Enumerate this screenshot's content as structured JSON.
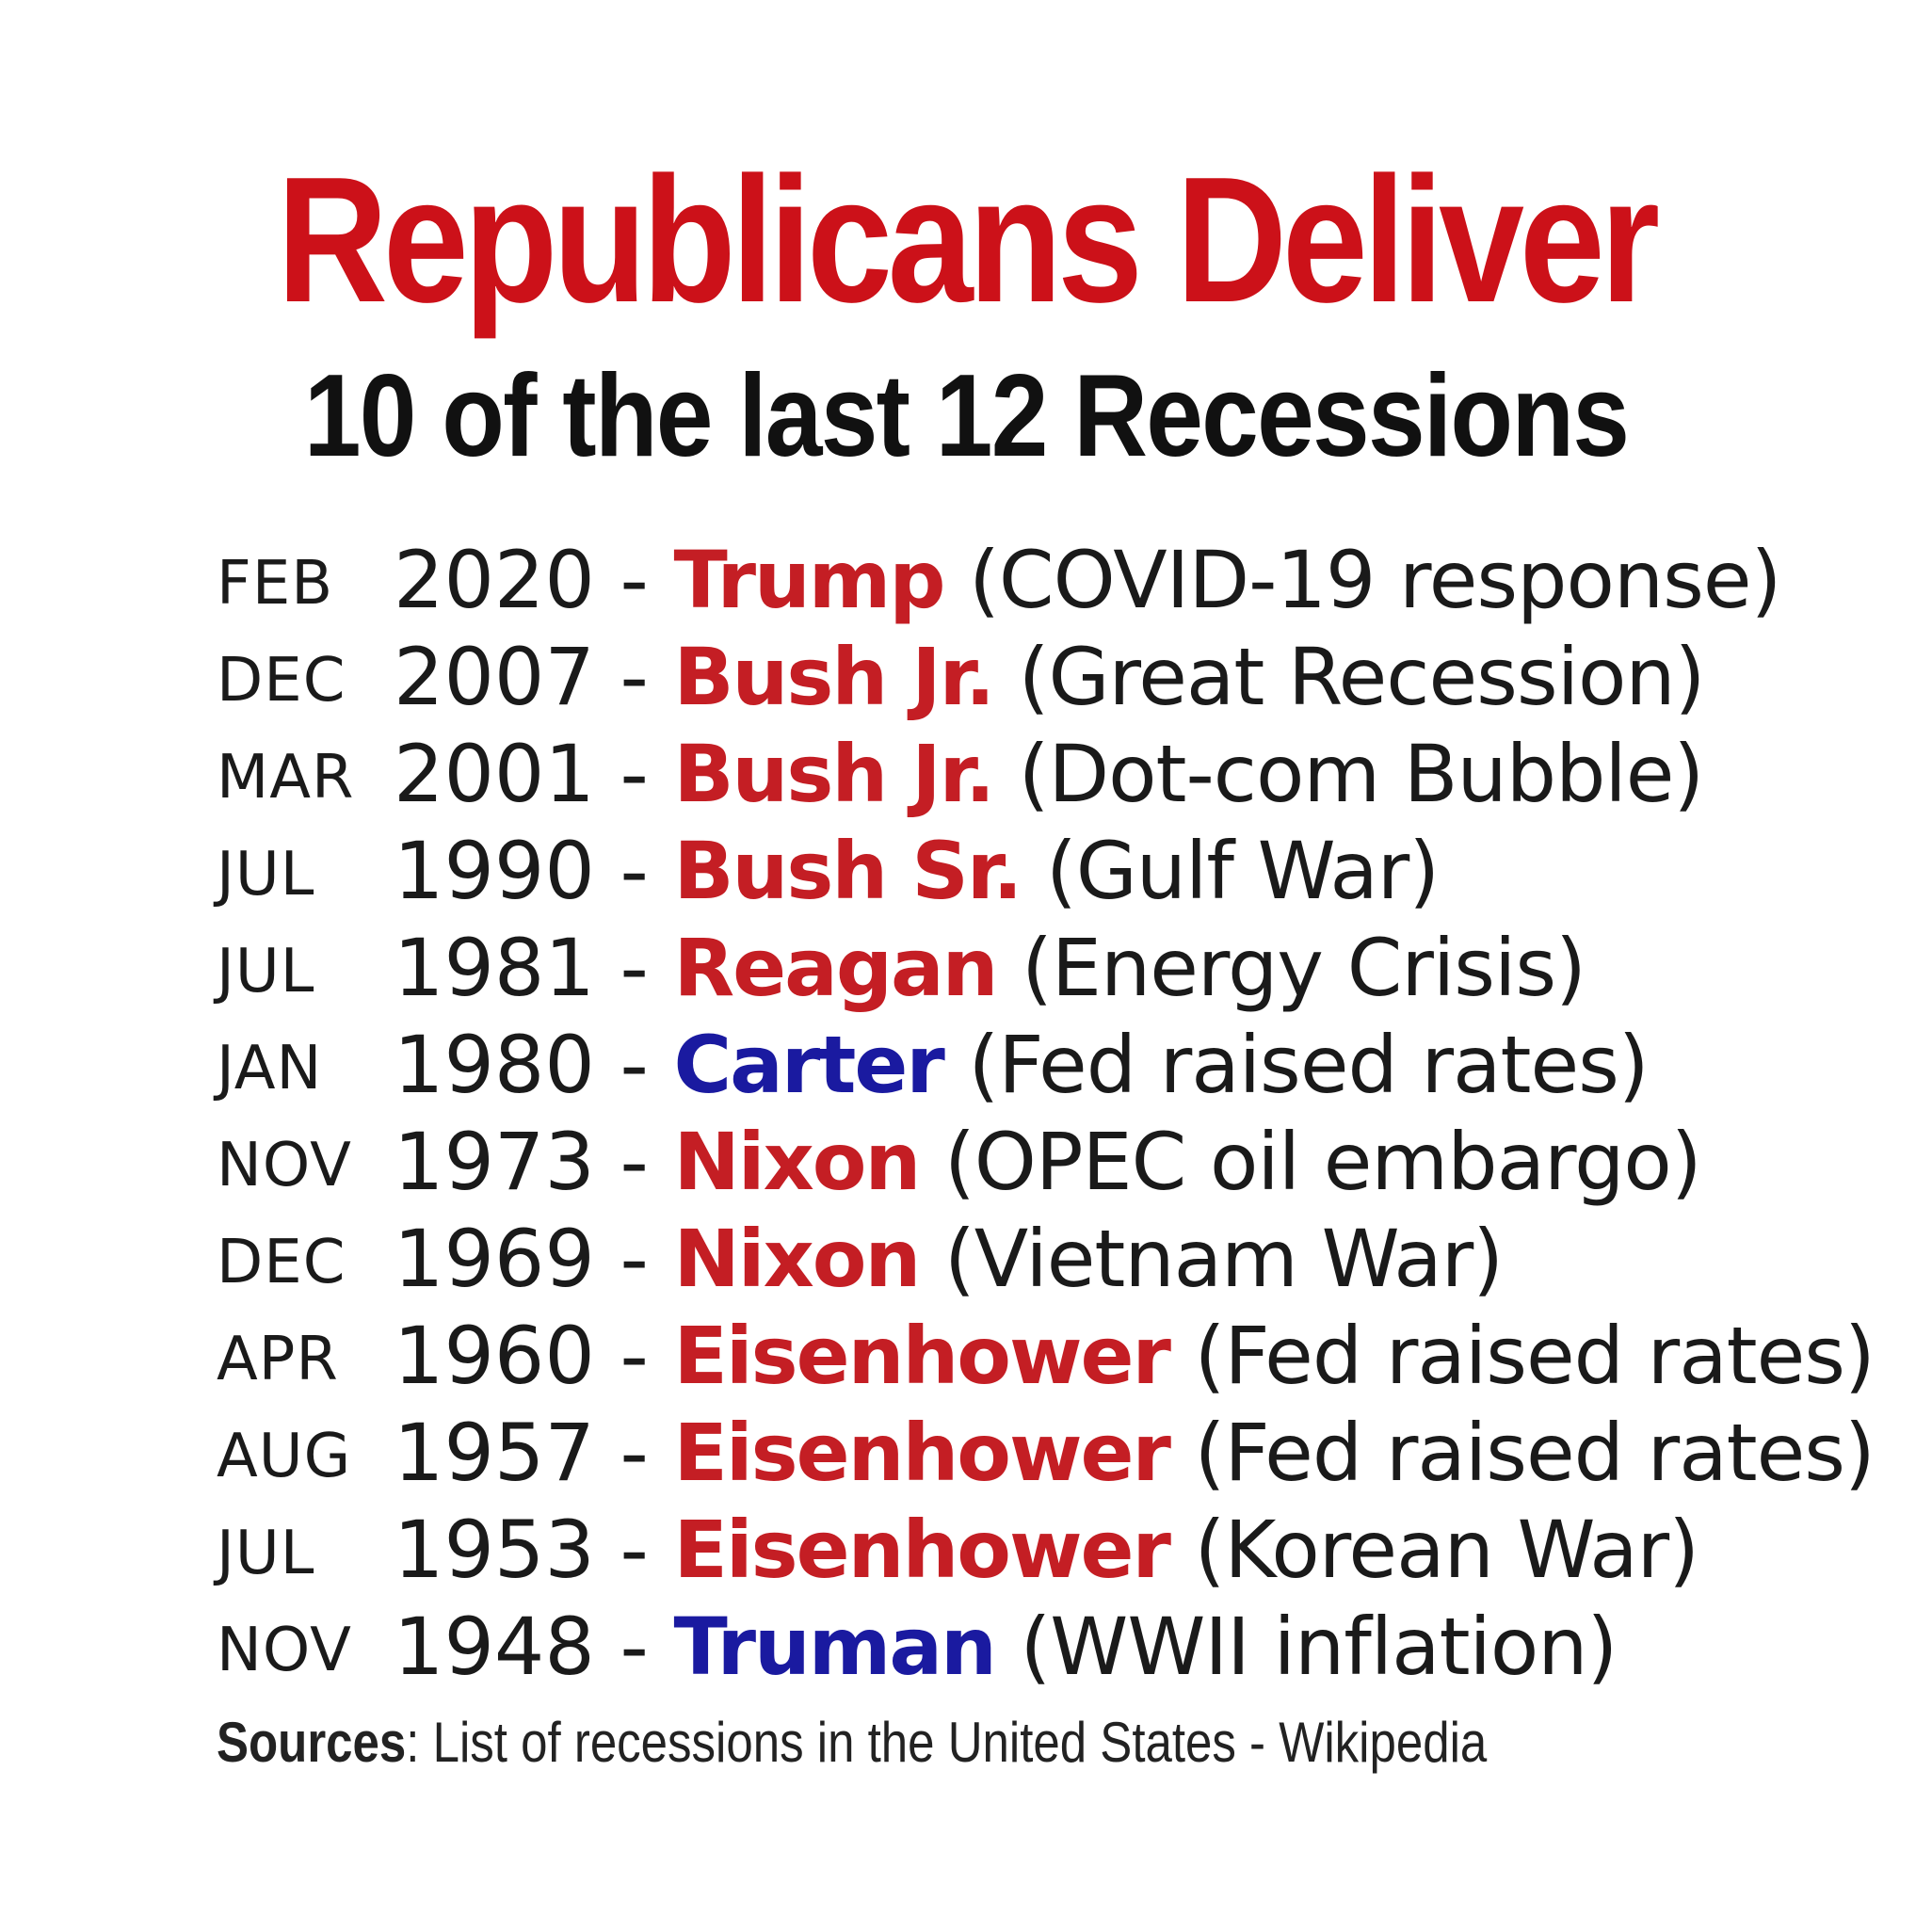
{
  "title": "Republicans Deliver",
  "subtitle": "10 of the last 12 Recessions",
  "colors": {
    "title_red": "#cc1119",
    "republican_red": "#c41e24",
    "democrat_blue": "#1a1aa0",
    "text": "#1a1a1a"
  },
  "recessions": [
    {
      "month": "FEB",
      "year": "2020",
      "dash": "-",
      "president": "Trump",
      "party": "rep",
      "cause": "(COVID-19 response)"
    },
    {
      "month": "DEC",
      "year": "2007",
      "dash": "-",
      "president": "Bush Jr.",
      "party": "rep",
      "cause": "(Great Recession)"
    },
    {
      "month": "MAR",
      "year": "2001",
      "dash": "-",
      "president": "Bush Jr.",
      "party": "rep",
      "cause": "(Dot-com Bubble)"
    },
    {
      "month": "JUL",
      "year": "1990",
      "dash": "-",
      "president": "Bush Sr.",
      "party": "rep",
      "cause": "(Gulf War)"
    },
    {
      "month": "JUL",
      "year": "1981",
      "dash": "-",
      "president": "Reagan",
      "party": "rep",
      "cause": "(Energy Crisis)"
    },
    {
      "month": "JAN",
      "year": "1980",
      "dash": "-",
      "president": "Carter",
      "party": "dem",
      "cause": "(Fed raised rates)"
    },
    {
      "month": "NOV",
      "year": "1973",
      "dash": "-",
      "president": "Nixon",
      "party": "rep",
      "cause": "(OPEC oil embargo)"
    },
    {
      "month": "DEC",
      "year": "1969",
      "dash": "-",
      "president": "Nixon",
      "party": "rep",
      "cause": "(Vietnam War)"
    },
    {
      "month": "APR",
      "year": "1960",
      "dash": "-",
      "president": "Eisenhower",
      "party": "rep",
      "cause": "(Fed raised rates)"
    },
    {
      "month": "AUG",
      "year": "1957",
      "dash": "-",
      "president": "Eisenhower",
      "party": "rep",
      "cause": "(Fed raised rates)"
    },
    {
      "month": "JUL",
      "year": "1953",
      "dash": "-",
      "president": "Eisenhower",
      "party": "rep",
      "cause": "(Korean War)"
    },
    {
      "month": "NOV",
      "year": "1948",
      "dash": "-",
      "president": "Truman",
      "party": "dem",
      "cause": "(WWII inflation)"
    }
  ],
  "sources": {
    "label": "Sources",
    "text": ": List of recessions in the United States - Wikipedia"
  }
}
